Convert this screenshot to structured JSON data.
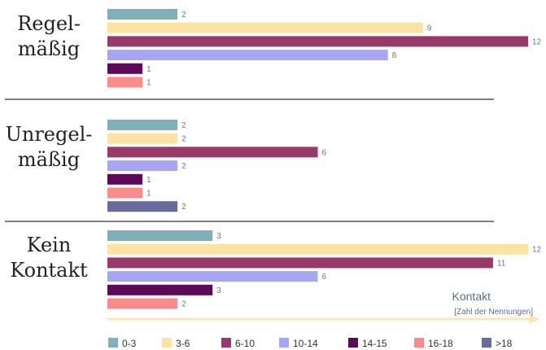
{
  "chart_data": {
    "type": "bar",
    "orientation": "horizontal",
    "axis_title": "Kontakt",
    "axis_subtitle": "[Zahl der Nennungen]",
    "xlim": [
      0,
      12
    ],
    "legend_position": "bottom",
    "series": [
      {
        "name": "0-3",
        "color": "#7fb0b8"
      },
      {
        "name": "3-6",
        "color": "#fbe3a6"
      },
      {
        "name": "6-10",
        "color": "#973a6a"
      },
      {
        "name": "10-14",
        "color": "#a8a5f3"
      },
      {
        "name": "14-15",
        "color": "#5b0a58"
      },
      {
        "name": "16-18",
        "color": "#f88c8c"
      },
      {
        "name": ">18",
        "color": "#6a6a9c"
      }
    ],
    "groups": [
      {
        "label_lines": [
          "Regel-",
          "mäßig"
        ],
        "values": [
          2,
          9,
          12,
          8,
          1,
          1,
          null
        ]
      },
      {
        "label_lines": [
          "Unregel-",
          "mäßig"
        ],
        "values": [
          2,
          2,
          6,
          2,
          1,
          1,
          2
        ]
      },
      {
        "label_lines": [
          "Kein",
          "Kontakt"
        ],
        "values": [
          3,
          12,
          11,
          6,
          3,
          2,
          null
        ]
      }
    ]
  }
}
